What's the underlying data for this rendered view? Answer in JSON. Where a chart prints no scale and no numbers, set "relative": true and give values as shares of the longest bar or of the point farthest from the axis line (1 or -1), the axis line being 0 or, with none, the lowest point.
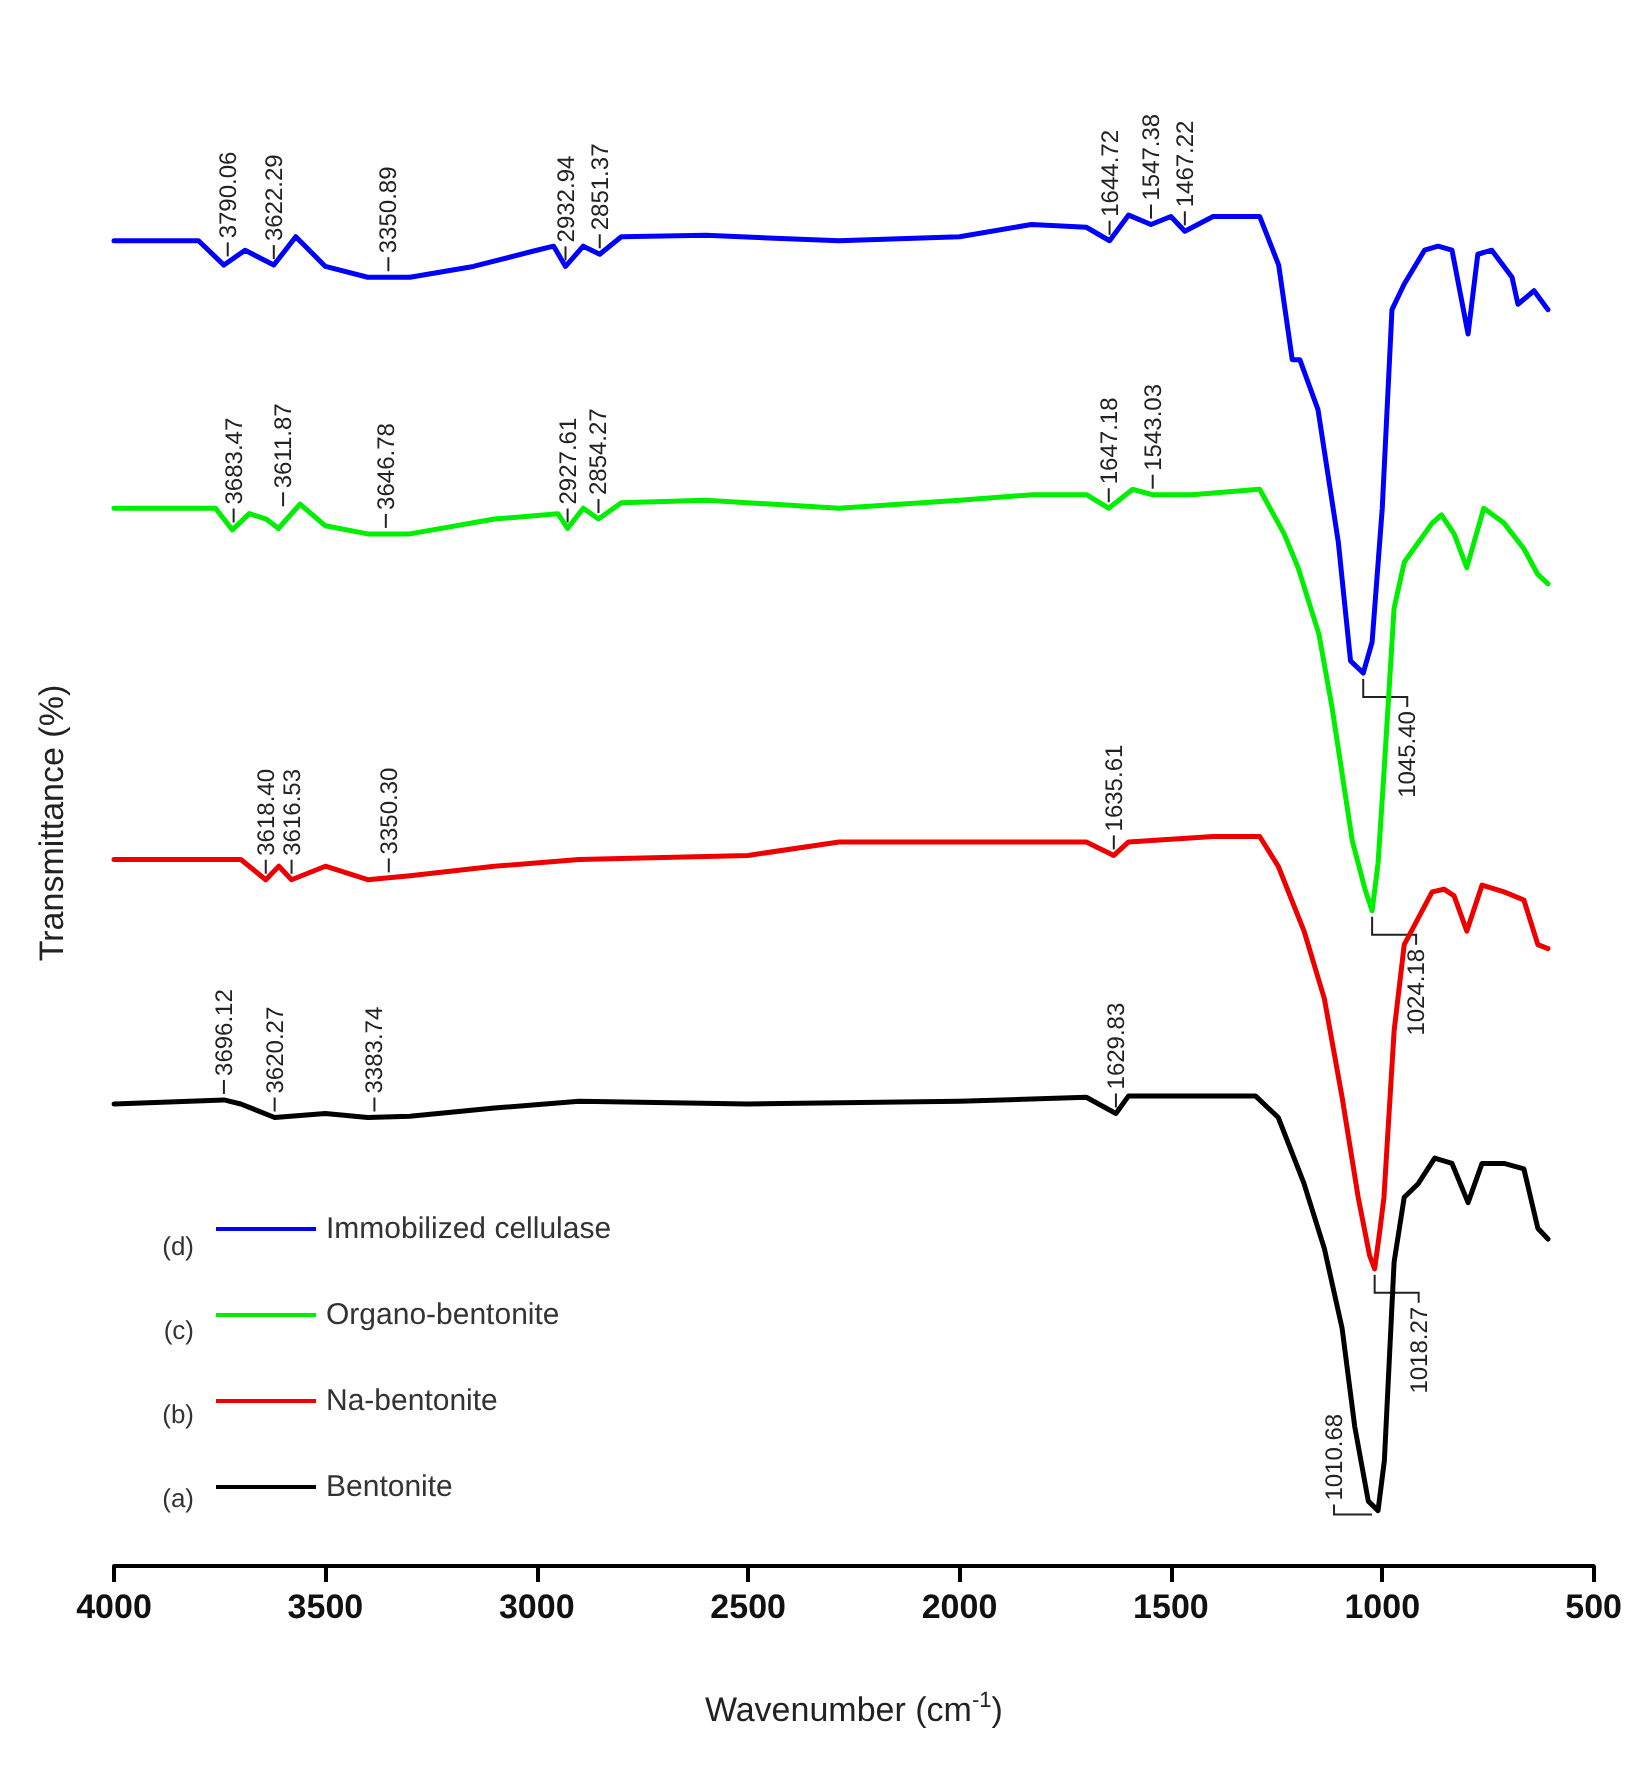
{
  "chart_data": {
    "type": "line",
    "relative": true,
    "xlabel": "Wavenumber (cm$^{-1}$)",
    "ylabel": "Transmittance (%)",
    "xlim": [
      4000,
      500
    ],
    "xticks": [
      4000,
      3500,
      3000,
      2500,
      2000,
      1500,
      1000,
      500
    ],
    "legend": "bottom left",
    "marker": "none",
    "series": [
      {
        "name": "Immobilized cellulase",
        "color": "#0000ff",
        "x": [
          4000,
          3800,
          3740,
          3690,
          3622,
          3570,
          3500,
          3400,
          3300,
          3150,
          3000,
          2960,
          2932,
          2890,
          2851,
          2800,
          2600,
          2285,
          2000,
          1830,
          1700,
          1645,
          1600,
          1547,
          1500,
          1467,
          1400,
          1290,
          1245,
          1213,
          1195,
          1152,
          1104,
          1075,
          1045,
          1024,
          1000,
          977,
          948,
          900,
          868,
          835,
          797,
          774,
          741,
          693,
          679,
          641,
          608
        ],
        "values": [
          0.981,
          0.981,
          0.963,
          0.974,
          0.963,
          0.984,
          0.962,
          0.954,
          0.954,
          0.962,
          0.974,
          0.977,
          0.962,
          0.977,
          0.971,
          0.984,
          0.985,
          0.981,
          0.984,
          0.993,
          0.991,
          0.981,
          1.0,
          0.993,
          0.999,
          0.988,
          0.999,
          0.999,
          0.963,
          0.893,
          0.893,
          0.856,
          0.758,
          0.67,
          0.661,
          0.684,
          0.783,
          0.93,
          0.949,
          0.974,
          0.977,
          0.974,
          0.912,
          0.971,
          0.974,
          0.954,
          0.934,
          0.944,
          0.93
        ]
      },
      {
        "name": "Organo-bentonite",
        "color": "#00ee00",
        "x": [
          4000,
          3760,
          3720,
          3680,
          3640,
          3611,
          3560,
          3500,
          3400,
          3300,
          3100,
          2950,
          2927,
          2890,
          2854,
          2800,
          2600,
          2285,
          2000,
          1827,
          1700,
          1647,
          1590,
          1543,
          1450,
          1290,
          1232,
          1199,
          1150,
          1119,
          1071,
          1040,
          1024,
          1010,
          996,
          972,
          948,
          882,
          860,
          830,
          800,
          760,
          712,
          665,
          632,
          608
        ],
        "values": [
          0.783,
          0.783,
          0.767,
          0.779,
          0.775,
          0.768,
          0.786,
          0.77,
          0.764,
          0.764,
          0.775,
          0.779,
          0.768,
          0.783,
          0.775,
          0.787,
          0.789,
          0.783,
          0.789,
          0.793,
          0.793,
          0.783,
          0.797,
          0.793,
          0.793,
          0.797,
          0.764,
          0.739,
          0.69,
          0.636,
          0.537,
          0.5,
          0.485,
          0.52,
          0.587,
          0.709,
          0.743,
          0.772,
          0.778,
          0.764,
          0.739,
          0.783,
          0.772,
          0.753,
          0.734,
          0.727
        ]
      },
      {
        "name": "Na-bentonite",
        "color": "#ee0000",
        "x": [
          4000,
          3700,
          3641,
          3610,
          3580,
          3500,
          3400,
          3300,
          3100,
          2900,
          2500,
          2285,
          1830,
          1700,
          1635,
          1600,
          1400,
          1290,
          1246,
          1185,
          1137,
          1095,
          1057,
          1030,
          1018,
          1005,
          996,
          972,
          948,
          882,
          854,
          830,
          800,
          764,
          712,
          665,
          632,
          608
        ],
        "values": [
          0.523,
          0.523,
          0.508,
          0.518,
          0.508,
          0.518,
          0.508,
          0.511,
          0.518,
          0.523,
          0.526,
          0.536,
          0.536,
          0.536,
          0.526,
          0.536,
          0.54,
          0.54,
          0.518,
          0.47,
          0.42,
          0.347,
          0.273,
          0.23,
          0.22,
          0.25,
          0.273,
          0.396,
          0.46,
          0.499,
          0.501,
          0.496,
          0.47,
          0.504,
          0.499,
          0.493,
          0.46,
          0.457
        ]
      },
      {
        "name": "Bentonite",
        "color": "#000000",
        "x": [
          4000,
          3740,
          3700,
          3620,
          3500,
          3400,
          3300,
          3100,
          2900,
          2500,
          2000,
          1700,
          1630,
          1600,
          1300,
          1246,
          1185,
          1137,
          1095,
          1065,
          1033,
          1010,
          995,
          972,
          948,
          915,
          876,
          835,
          797,
          764,
          712,
          665,
          632,
          608
        ],
        "values": [
          0.342,
          0.345,
          0.342,
          0.332,
          0.335,
          0.332,
          0.333,
          0.339,
          0.344,
          0.342,
          0.344,
          0.347,
          0.335,
          0.348,
          0.348,
          0.332,
          0.283,
          0.235,
          0.176,
          0.103,
          0.048,
          0.041,
          0.078,
          0.225,
          0.273,
          0.283,
          0.302,
          0.298,
          0.269,
          0.298,
          0.298,
          0.294,
          0.25,
          0.242
        ]
      }
    ],
    "annotations": [
      {
        "text": "3790.06",
        "x": 3731,
        "y": 0.965
      },
      {
        "text": "3622.29",
        "x": 3622,
        "y": 0.963
      },
      {
        "text": "3350.89",
        "x": 3351,
        "y": 0.954
      },
      {
        "text": "2932.94",
        "x": 2932,
        "y": 0.962
      },
      {
        "text": "2851.37",
        "x": 2851,
        "y": 0.971
      },
      {
        "text": "1644.72",
        "x": 1645,
        "y": 0.981
      },
      {
        "text": "1547.38",
        "x": 1547,
        "y": 0.993
      },
      {
        "text": "1467.22",
        "x": 1467,
        "y": 0.988
      },
      {
        "text": "1045.40",
        "x": 1045,
        "y": 0.661
      },
      {
        "text": "3683.47",
        "x": 3717,
        "y": 0.768
      },
      {
        "text": "3611.87",
        "x": 3600,
        "y": 0.78
      },
      {
        "text": "3646.78",
        "x": 3357,
        "y": 0.764
      },
      {
        "text": "2927.61",
        "x": 2927,
        "y": 0.768
      },
      {
        "text": "2854.27",
        "x": 2854,
        "y": 0.775
      },
      {
        "text": "1647.18",
        "x": 1647,
        "y": 0.783
      },
      {
        "text": "1543.03",
        "x": 1543,
        "y": 0.793
      },
      {
        "text": "1024.18",
        "x": 1024,
        "y": 0.485
      },
      {
        "text": "3618.40",
        "x": 3641,
        "y": 0.508
      },
      {
        "text": "3616.53",
        "x": 3580,
        "y": 0.508
      },
      {
        "text": "3350.30",
        "x": 3350,
        "y": 0.509
      },
      {
        "text": "1635.61",
        "x": 1635,
        "y": 0.526
      },
      {
        "text": "1018.27",
        "x": 1018,
        "y": 0.22
      },
      {
        "text": "3696.12",
        "x": 3740,
        "y": 0.345
      },
      {
        "text": "3620.27",
        "x": 3620,
        "y": 0.332
      },
      {
        "text": "3383.74",
        "x": 3384,
        "y": 0.332
      },
      {
        "text": "1629.83",
        "x": 1630,
        "y": 0.335
      },
      {
        "text": "1010.68",
        "x": 1010,
        "y": 0.041
      },
      "(d)",
      "(c)",
      "(b)",
      "(a)"
    ]
  }
}
